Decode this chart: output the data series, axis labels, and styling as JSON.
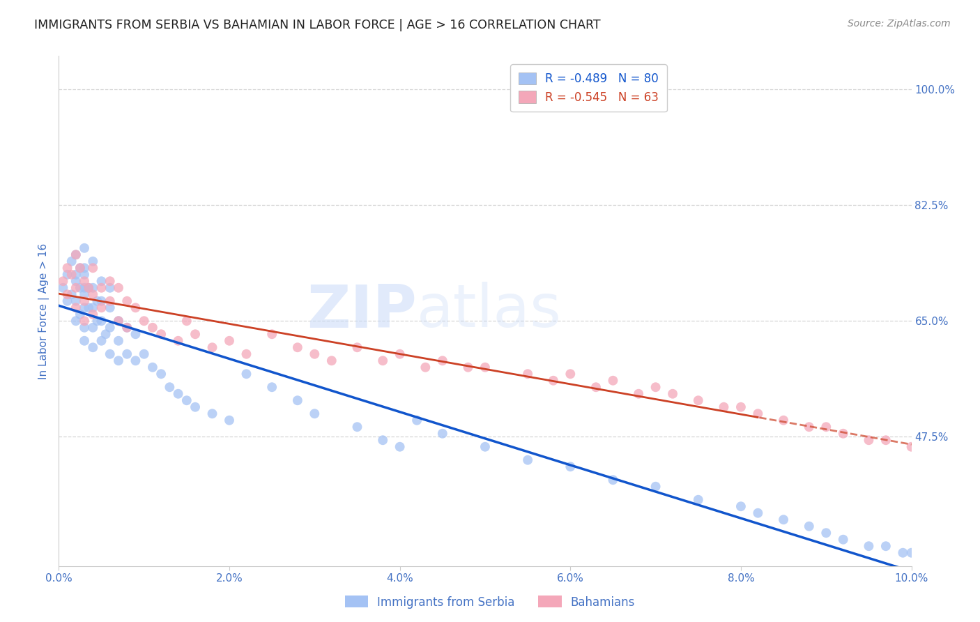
{
  "title": "IMMIGRANTS FROM SERBIA VS BAHAMIAN IN LABOR FORCE | AGE > 16 CORRELATION CHART",
  "source": "Source: ZipAtlas.com",
  "ylabel": "In Labor Force | Age > 16",
  "legend_label1": "Immigrants from Serbia",
  "legend_label2": "Bahamians",
  "r1": -0.489,
  "n1": 80,
  "r2": -0.545,
  "n2": 63,
  "color1": "#a4c2f4",
  "color2": "#f4a7b9",
  "line_color1": "#1155cc",
  "line_color2": "#cc4125",
  "xlim": [
    0.0,
    0.1
  ],
  "ylim": [
    0.28,
    1.05
  ],
  "yticks": [
    0.475,
    0.65,
    0.825,
    1.0
  ],
  "ytick_labels": [
    "47.5%",
    "65.0%",
    "82.5%",
    "100.0%"
  ],
  "xticks": [
    0.0,
    0.02,
    0.04,
    0.06,
    0.08,
    0.1
  ],
  "xtick_labels": [
    "0.0%",
    "2.0%",
    "4.0%",
    "6.0%",
    "8.0%",
    "10.0%"
  ],
  "watermark_zip": "ZIP",
  "watermark_atlas": "atlas",
  "background_color": "#ffffff",
  "grid_color": "#cccccc",
  "serbia_x": [
    0.0005,
    0.001,
    0.001,
    0.0015,
    0.0015,
    0.002,
    0.002,
    0.002,
    0.002,
    0.002,
    0.0025,
    0.0025,
    0.0025,
    0.003,
    0.003,
    0.003,
    0.003,
    0.003,
    0.003,
    0.003,
    0.003,
    0.0035,
    0.0035,
    0.004,
    0.004,
    0.004,
    0.004,
    0.004,
    0.0045,
    0.0045,
    0.005,
    0.005,
    0.005,
    0.005,
    0.0055,
    0.006,
    0.006,
    0.006,
    0.006,
    0.007,
    0.007,
    0.007,
    0.008,
    0.008,
    0.009,
    0.009,
    0.01,
    0.011,
    0.012,
    0.013,
    0.014,
    0.015,
    0.016,
    0.018,
    0.02,
    0.022,
    0.025,
    0.028,
    0.03,
    0.035,
    0.038,
    0.04,
    0.042,
    0.045,
    0.05,
    0.055,
    0.06,
    0.065,
    0.07,
    0.075,
    0.08,
    0.082,
    0.085,
    0.088,
    0.09,
    0.092,
    0.095,
    0.097,
    0.099,
    0.1
  ],
  "serbia_y": [
    0.7,
    0.72,
    0.68,
    0.74,
    0.69,
    0.75,
    0.72,
    0.68,
    0.65,
    0.71,
    0.73,
    0.7,
    0.66,
    0.76,
    0.73,
    0.7,
    0.67,
    0.64,
    0.62,
    0.69,
    0.72,
    0.7,
    0.67,
    0.74,
    0.7,
    0.67,
    0.64,
    0.61,
    0.68,
    0.65,
    0.71,
    0.68,
    0.65,
    0.62,
    0.63,
    0.7,
    0.67,
    0.64,
    0.6,
    0.65,
    0.62,
    0.59,
    0.64,
    0.6,
    0.63,
    0.59,
    0.6,
    0.58,
    0.57,
    0.55,
    0.54,
    0.53,
    0.52,
    0.51,
    0.5,
    0.57,
    0.55,
    0.53,
    0.51,
    0.49,
    0.47,
    0.46,
    0.5,
    0.48,
    0.46,
    0.44,
    0.43,
    0.41,
    0.4,
    0.38,
    0.37,
    0.36,
    0.35,
    0.34,
    0.33,
    0.32,
    0.31,
    0.31,
    0.3,
    0.3
  ],
  "bahamian_x": [
    0.0005,
    0.001,
    0.001,
    0.0015,
    0.002,
    0.002,
    0.002,
    0.0025,
    0.003,
    0.003,
    0.003,
    0.0035,
    0.004,
    0.004,
    0.004,
    0.005,
    0.005,
    0.006,
    0.006,
    0.007,
    0.007,
    0.008,
    0.008,
    0.009,
    0.01,
    0.011,
    0.012,
    0.014,
    0.015,
    0.016,
    0.018,
    0.02,
    0.022,
    0.025,
    0.028,
    0.03,
    0.032,
    0.035,
    0.038,
    0.04,
    0.043,
    0.045,
    0.048,
    0.05,
    0.055,
    0.058,
    0.06,
    0.063,
    0.065,
    0.068,
    0.07,
    0.072,
    0.075,
    0.078,
    0.08,
    0.082,
    0.085,
    0.088,
    0.09,
    0.092,
    0.095,
    0.097,
    0.1
  ],
  "bahamian_y": [
    0.71,
    0.73,
    0.69,
    0.72,
    0.75,
    0.7,
    0.67,
    0.73,
    0.71,
    0.68,
    0.65,
    0.7,
    0.73,
    0.69,
    0.66,
    0.7,
    0.67,
    0.71,
    0.68,
    0.7,
    0.65,
    0.68,
    0.64,
    0.67,
    0.65,
    0.64,
    0.63,
    0.62,
    0.65,
    0.63,
    0.61,
    0.62,
    0.6,
    0.63,
    0.61,
    0.6,
    0.59,
    0.61,
    0.59,
    0.6,
    0.58,
    0.59,
    0.58,
    0.58,
    0.57,
    0.56,
    0.57,
    0.55,
    0.56,
    0.54,
    0.55,
    0.54,
    0.53,
    0.52,
    0.52,
    0.51,
    0.5,
    0.49,
    0.49,
    0.48,
    0.47,
    0.47,
    0.46
  ],
  "title_fontsize": 12.5,
  "axis_label_color": "#4472c4",
  "tick_label_color": "#4472c4",
  "tick_fontsize": 11,
  "legend_dashed_split": 0.082
}
